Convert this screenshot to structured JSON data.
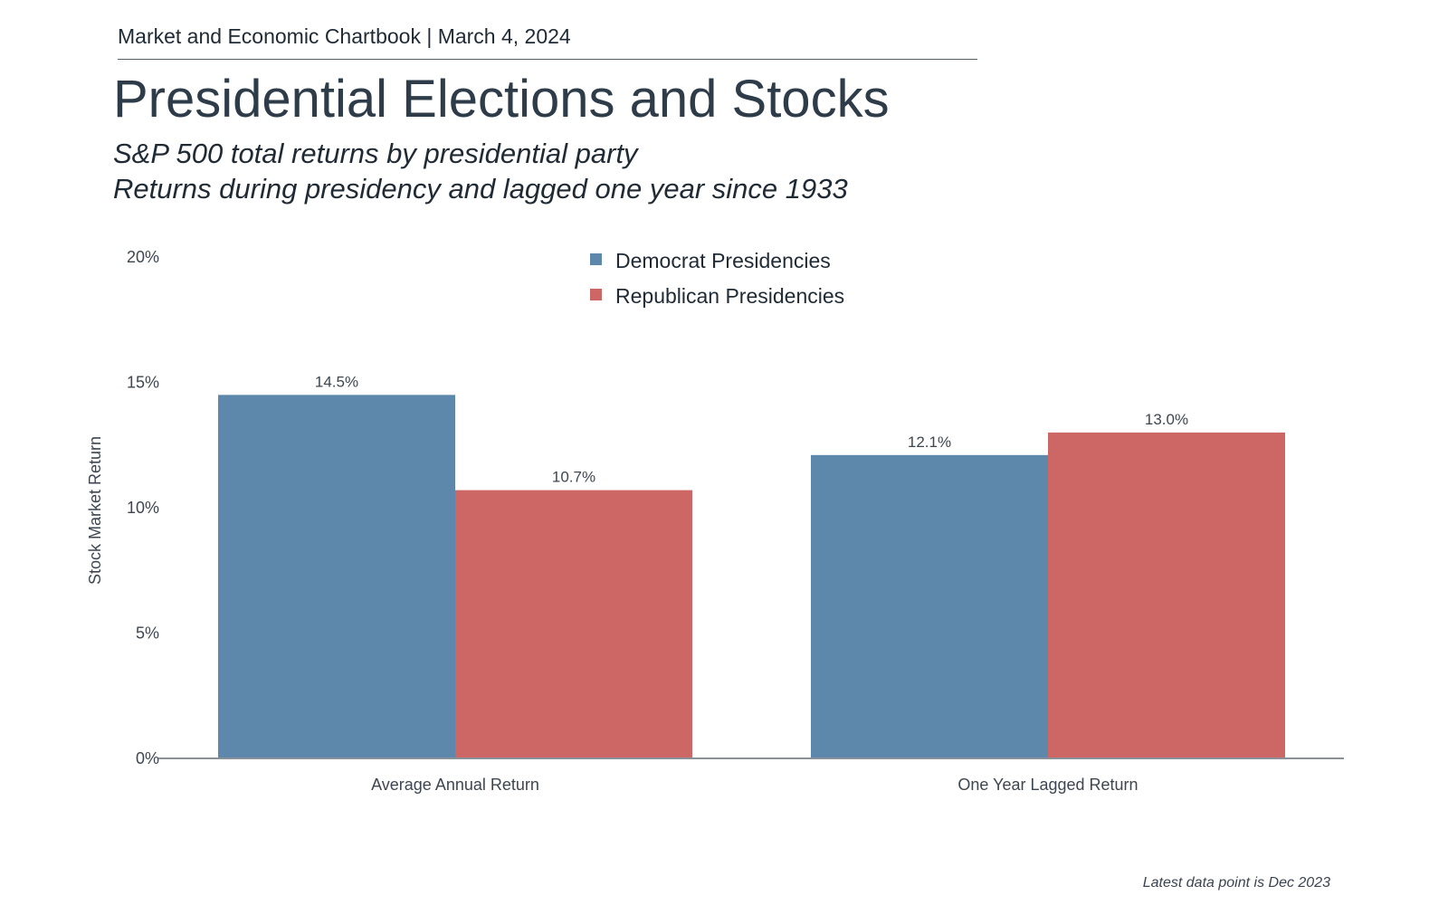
{
  "header": {
    "publication": "Market and Economic Chartbook | March 4, 2024",
    "title": "Presidential Elections and Stocks",
    "subtitle_line1": "S&P 500 total returns by presidential party",
    "subtitle_line2": "Returns during presidency and lagged one year since 1933"
  },
  "footnote": "Latest data point is Dec 2023",
  "chart_data": {
    "type": "bar",
    "title": "Presidential Elections and Stocks",
    "xlabel": "",
    "ylabel": "Stock Market Return",
    "ylim": [
      0,
      20
    ],
    "yticks": [
      0,
      5,
      10,
      15,
      20
    ],
    "ytick_labels": [
      "0%",
      "5%",
      "10%",
      "15%",
      "20%"
    ],
    "categories": [
      "Average Annual Return",
      "One Year Lagged Return"
    ],
    "series": [
      {
        "name": "Democrat Presidencies",
        "color": "#5e88ab",
        "values": [
          14.5,
          12.1
        ],
        "labels": [
          "14.5%",
          "12.1%"
        ]
      },
      {
        "name": "Republican Presidencies",
        "color": "#cd6766",
        "values": [
          10.7,
          13.0
        ],
        "labels": [
          "10.7%",
          "13.0%"
        ]
      }
    ],
    "legend_position": "top-center",
    "grid": false
  }
}
